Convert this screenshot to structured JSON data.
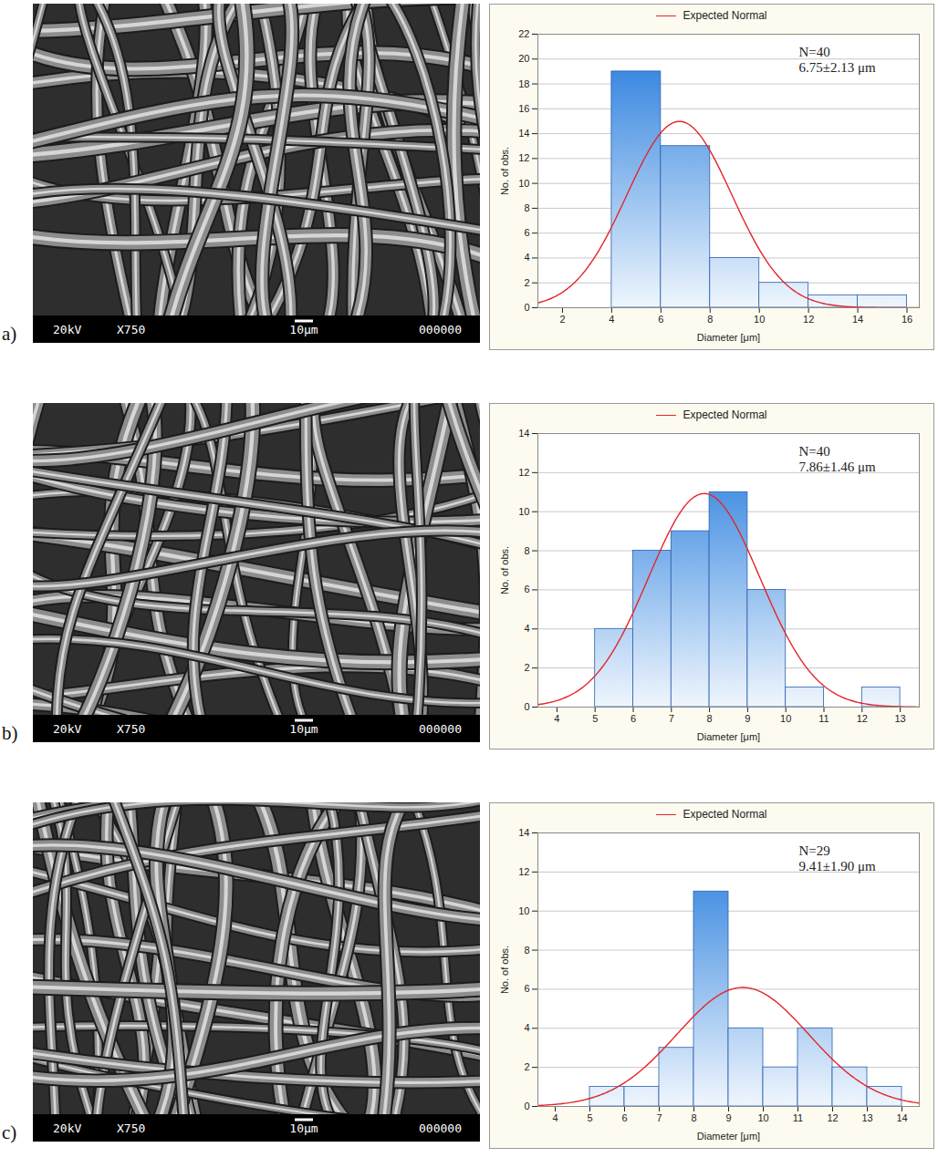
{
  "chart_data": [
    {
      "type": "histogram",
      "bins": [
        4,
        6,
        8,
        10,
        12,
        14,
        16
      ],
      "values": [
        19,
        13,
        4,
        2,
        1,
        1
      ],
      "color": "#1f78dc",
      "xlabel": "Diameter [μm]",
      "ylabel": "No. of obs.",
      "xlim": [
        1,
        16.5
      ],
      "xticks": [
        2,
        4,
        6,
        8,
        10,
        12,
        14,
        16
      ],
      "ylim": [
        0,
        22
      ],
      "yticks": [
        0,
        2,
        4,
        6,
        8,
        10,
        12,
        14,
        16,
        18,
        20,
        22
      ],
      "grid": true,
      "legend": "top",
      "annotations": [
        "N=40",
        "6.75±2.13 μm"
      ],
      "fit": {
        "name": "Expected Normal",
        "color": "#e3262b",
        "mean": 6.75,
        "sd": 2.13,
        "n": 40
      }
    },
    {
      "type": "histogram",
      "bins": [
        5,
        6,
        7,
        8,
        9,
        10,
        11,
        12,
        13
      ],
      "values": [
        4,
        8,
        9,
        11,
        6,
        1,
        0,
        1
      ],
      "color": "#1f78dc",
      "xlabel": "Diameter [μm]",
      "ylabel": "No. of obs.",
      "xlim": [
        3.5,
        13.5
      ],
      "xticks": [
        4,
        5,
        6,
        7,
        8,
        9,
        10,
        11,
        12,
        13
      ],
      "ylim": [
        0,
        14
      ],
      "yticks": [
        0,
        2,
        4,
        6,
        8,
        10,
        12,
        14
      ],
      "grid": true,
      "legend": "top",
      "annotations": [
        "N=40",
        "7.86±1.46 μm"
      ],
      "fit": {
        "name": "Expected Normal",
        "color": "#e3262b",
        "mean": 7.86,
        "sd": 1.46,
        "n": 40
      }
    },
    {
      "type": "histogram",
      "bins": [
        5,
        6,
        7,
        8,
        9,
        10,
        11,
        12,
        13,
        14
      ],
      "values": [
        1,
        1,
        3,
        11,
        4,
        2,
        4,
        2,
        1
      ],
      "color": "#1f78dc",
      "xlabel": "Diameter [μm]",
      "ylabel": "No. of obs.",
      "xlim": [
        3.5,
        14.5
      ],
      "xticks": [
        4,
        5,
        6,
        7,
        8,
        9,
        10,
        11,
        12,
        13,
        14
      ],
      "ylim": [
        0,
        14
      ],
      "yticks": [
        0,
        2,
        4,
        6,
        8,
        10,
        12,
        14
      ],
      "grid": true,
      "legend": "top",
      "annotations": [
        "N=29",
        "9.41±1.90 μm"
      ],
      "fit": {
        "name": "Expected Normal",
        "color": "#e3262b",
        "mean": 9.41,
        "sd": 1.9,
        "n": 29
      }
    }
  ],
  "panels": [
    {
      "label": "a)",
      "image_bar": {
        "voltage": "20kV",
        "magnification": "X750",
        "scale": "10µm",
        "id": "000000"
      }
    },
    {
      "label": "b)",
      "image_bar": {
        "voltage": "20kV",
        "magnification": "X750",
        "scale": "10µm",
        "id": "000000"
      }
    },
    {
      "label": "c)",
      "image_bar": {
        "voltage": "20kV",
        "magnification": "X750",
        "scale": "10µm",
        "id": "000000"
      }
    }
  ]
}
